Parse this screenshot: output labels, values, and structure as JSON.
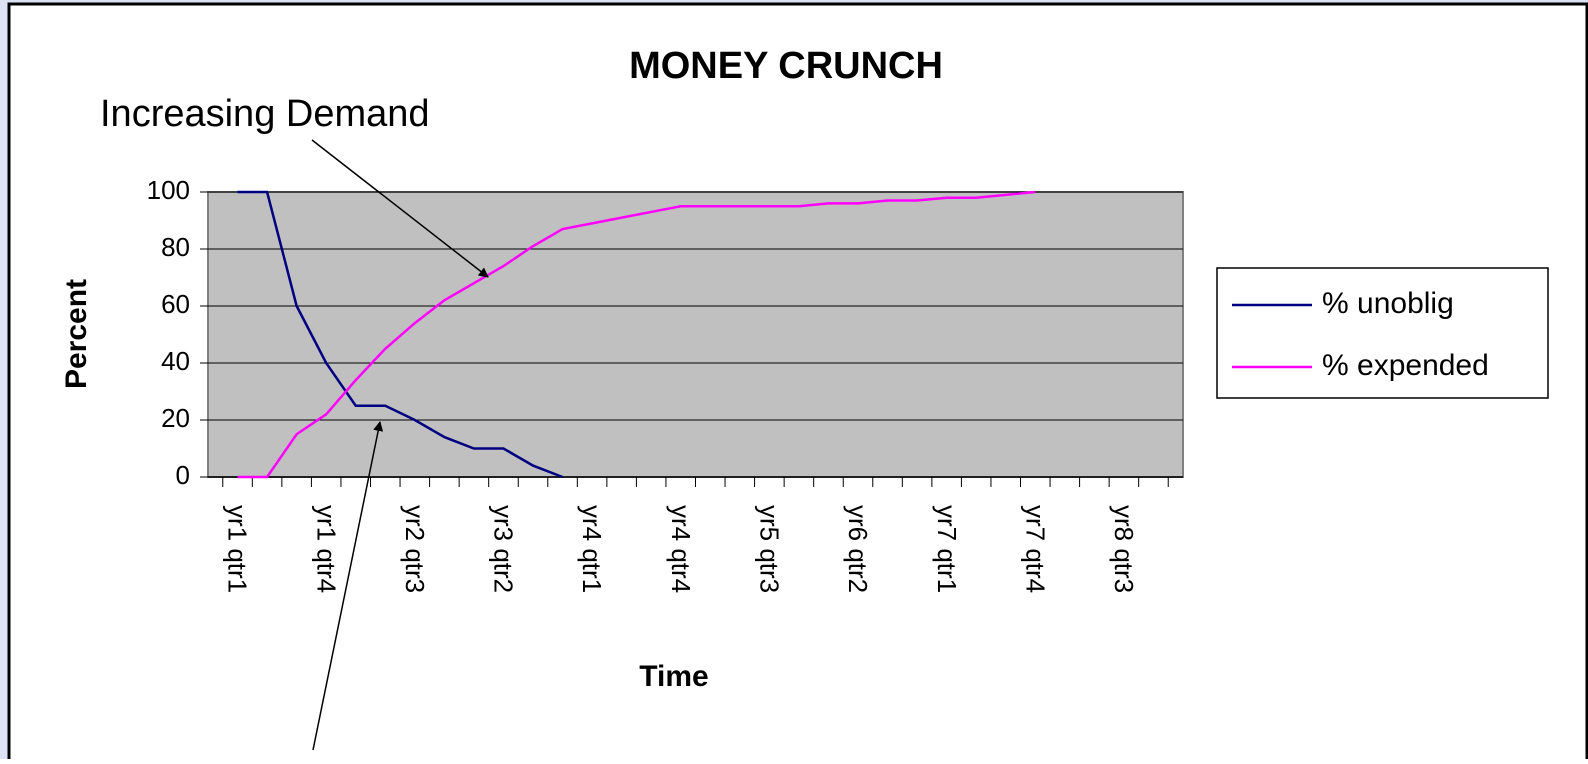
{
  "chart_data": {
    "type": "line",
    "title": "MONEY CRUNCH",
    "x_label": "Time",
    "y_label": "Percent",
    "categories": [
      "yr1 qtr1",
      null,
      null,
      "yr1 qtr4",
      null,
      null,
      "yr2 qtr3",
      null,
      null,
      "yr3 qtr2",
      null,
      null,
      "yr4 qtr1",
      null,
      null,
      "yr4 qtr4",
      null,
      null,
      "yr5 qtr3",
      null,
      null,
      "yr6 qtr2",
      null,
      null,
      "yr7 qtr1",
      null,
      null,
      "yr7 qtr4",
      null,
      null,
      "yr8 qtr3",
      null
    ],
    "series": [
      {
        "name": "% unoblig",
        "color": "#000080",
        "values": [
          100,
          100,
          60,
          40,
          25,
          25,
          20,
          14,
          10,
          10,
          4,
          0,
          null,
          null,
          null,
          null,
          null,
          null,
          null,
          null,
          null,
          null,
          null,
          null,
          null,
          null,
          null,
          null,
          null,
          null,
          null,
          null
        ]
      },
      {
        "name": "% expended",
        "color": "#ff00ff",
        "values": [
          0,
          0,
          15,
          22,
          34,
          45,
          54,
          62,
          68,
          74,
          81,
          87,
          89,
          91,
          93,
          95,
          95,
          95,
          95,
          95,
          96,
          96,
          97,
          97,
          98,
          98,
          99,
          100,
          null,
          null,
          null,
          null
        ]
      }
    ],
    "annotations": [
      "Increasing Demand"
    ],
    "ylim": [
      0,
      100
    ],
    "yticks": [
      0,
      20,
      40,
      60,
      80,
      100
    ],
    "grid": true,
    "legend": "right"
  }
}
